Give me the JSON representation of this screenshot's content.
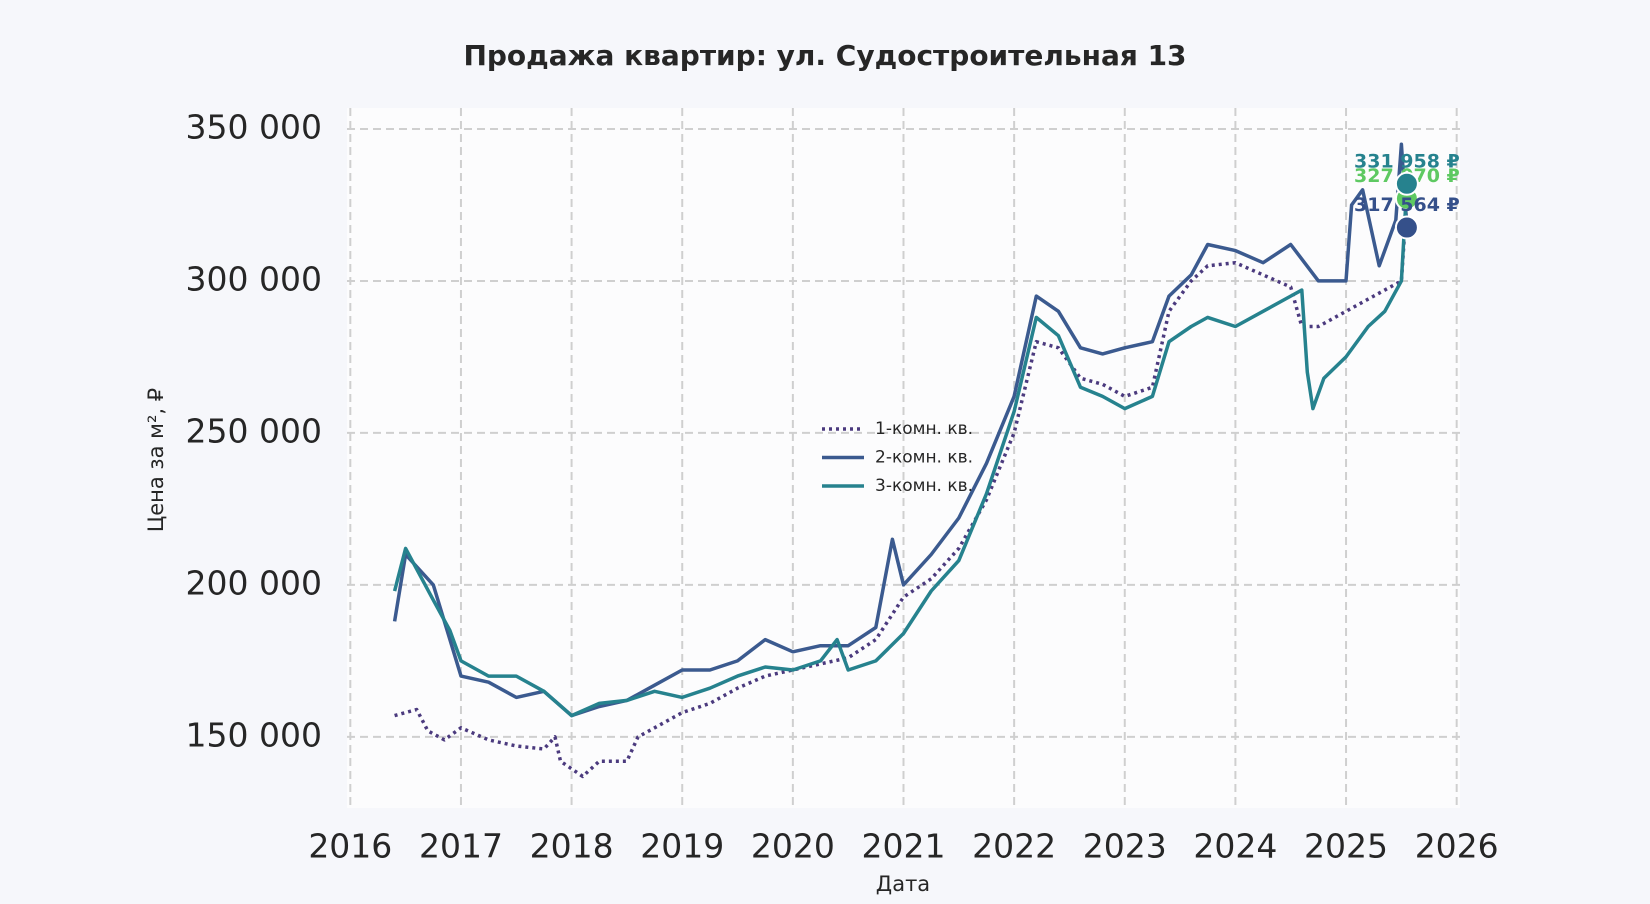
{
  "chart_data": {
    "type": "line",
    "title": "Продажа квартир: ул. Судостроительная 13",
    "x_label": "Дата",
    "y_label": "Цена за м², ₽",
    "xlim": [
      2015.97,
      2026.03
    ],
    "xticks": [
      2016,
      2017,
      2018,
      2019,
      2020,
      2021,
      2022,
      2023,
      2024,
      2025,
      2026
    ],
    "ylim": [
      126600,
      356900
    ],
    "yticks": [
      {
        "value": 150000,
        "label": "150 000"
      },
      {
        "value": 200000,
        "label": "200 000"
      },
      {
        "value": 250000,
        "label": "250 000"
      },
      {
        "value": 300000,
        "label": "300 000"
      },
      {
        "value": 350000,
        "label": "350 000"
      }
    ],
    "grid": true,
    "legend": "center",
    "series": [
      {
        "name": "1-комн. кв.",
        "color": "#4b3a7e",
        "linestyle": "dotted",
        "end_color": "#5ec962",
        "end_label": "327 070 ₽",
        "x": [
          2016.4,
          2016.6,
          2016.7,
          2016.85,
          2017.0,
          2017.25,
          2017.5,
          2017.75,
          2017.85,
          2017.9,
          2018.1,
          2018.25,
          2018.5,
          2018.6,
          2018.75,
          2019.0,
          2019.25,
          2019.5,
          2019.75,
          2020.0,
          2020.25,
          2020.5,
          2020.75,
          2021.0,
          2021.25,
          2021.5,
          2021.75,
          2022.0,
          2022.2,
          2022.4,
          2022.6,
          2022.8,
          2023.0,
          2023.25,
          2023.4,
          2023.6,
          2023.75,
          2024.0,
          2024.25,
          2024.5,
          2024.6,
          2024.75,
          2025.0,
          2025.25,
          2025.5,
          2025.55
        ],
        "values": [
          157000,
          159000,
          152000,
          149000,
          153000,
          149000,
          147000,
          146000,
          150000,
          142000,
          137000,
          142000,
          142000,
          150000,
          153000,
          158000,
          161000,
          166000,
          170000,
          172000,
          174000,
          176000,
          182000,
          196000,
          202000,
          212000,
          228000,
          250000,
          280000,
          278000,
          268000,
          266000,
          262000,
          265000,
          290000,
          300000,
          305000,
          306000,
          302000,
          298000,
          285000,
          285000,
          290000,
          295000,
          300000,
          327070
        ]
      },
      {
        "name": "2-комн. кв.",
        "color": "#3b5a8f",
        "linestyle": "solid",
        "end_color": "#35508a",
        "end_label": "317 564 ₽",
        "x": [
          2016.4,
          2016.5,
          2016.75,
          2017.0,
          2017.25,
          2017.5,
          2017.75,
          2018.0,
          2018.25,
          2018.5,
          2018.75,
          2019.0,
          2019.25,
          2019.5,
          2019.75,
          2020.0,
          2020.25,
          2020.5,
          2020.75,
          2020.9,
          2021.0,
          2021.25,
          2021.5,
          2021.75,
          2022.0,
          2022.2,
          2022.4,
          2022.6,
          2022.8,
          2023.0,
          2023.25,
          2023.4,
          2023.6,
          2023.75,
          2024.0,
          2024.25,
          2024.5,
          2024.75,
          2025.0,
          2025.05,
          2025.15,
          2025.3,
          2025.45,
          2025.5,
          2025.55
        ],
        "values": [
          188000,
          210000,
          200000,
          170000,
          168000,
          163000,
          165000,
          157000,
          160000,
          162000,
          167000,
          172000,
          172000,
          175000,
          182000,
          178000,
          180000,
          180000,
          186000,
          215000,
          200000,
          210000,
          222000,
          240000,
          262000,
          295000,
          290000,
          278000,
          276000,
          278000,
          280000,
          295000,
          302000,
          312000,
          310000,
          306000,
          312000,
          300000,
          300000,
          325000,
          330000,
          305000,
          320000,
          345000,
          317564
        ]
      },
      {
        "name": "3-комн. кв.",
        "color": "#26828e",
        "linestyle": "solid",
        "end_color": "#26828e",
        "end_label": "331 958 ₽",
        "x": [
          2016.4,
          2016.5,
          2016.75,
          2016.9,
          2017.0,
          2017.25,
          2017.5,
          2017.75,
          2018.0,
          2018.25,
          2018.5,
          2018.75,
          2019.0,
          2019.25,
          2019.5,
          2019.75,
          2020.0,
          2020.25,
          2020.4,
          2020.5,
          2020.75,
          2021.0,
          2021.25,
          2021.5,
          2021.75,
          2022.0,
          2022.2,
          2022.4,
          2022.6,
          2022.8,
          2023.0,
          2023.25,
          2023.4,
          2023.6,
          2023.75,
          2024.0,
          2024.25,
          2024.5,
          2024.6,
          2024.65,
          2024.7,
          2024.8,
          2025.0,
          2025.2,
          2025.35,
          2025.5,
          2025.55
        ],
        "values": [
          198000,
          212000,
          195000,
          185000,
          175000,
          170000,
          170000,
          165000,
          157000,
          161000,
          162000,
          165000,
          163000,
          166000,
          170000,
          173000,
          172000,
          175000,
          182000,
          172000,
          175000,
          184000,
          198000,
          208000,
          230000,
          257000,
          288000,
          282000,
          265000,
          262000,
          258000,
          262000,
          280000,
          285000,
          288000,
          285000,
          290000,
          295000,
          297000,
          270000,
          258000,
          268000,
          275000,
          285000,
          290000,
          300000,
          331958
        ]
      }
    ]
  }
}
